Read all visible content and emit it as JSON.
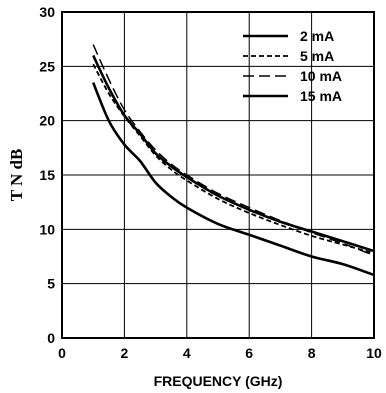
{
  "chart_data": {
    "type": "line",
    "xlabel": "FREQUENCY (GHz)",
    "ylabel": "T N dB",
    "xlim": [
      0,
      10
    ],
    "ylim": [
      0,
      30
    ],
    "xticks": [
      0,
      2,
      4,
      6,
      8,
      10
    ],
    "yticks": [
      0,
      5,
      10,
      15,
      20,
      25,
      30
    ],
    "grid": true,
    "legend_position": "top-right",
    "series": [
      {
        "name": "2 mA",
        "style": "solid",
        "x": [
          1,
          1.5,
          2,
          2.5,
          3,
          3.5,
          4,
          5,
          6,
          7,
          8,
          9,
          10
        ],
        "y": [
          26.0,
          23.0,
          20.5,
          18.8,
          17.0,
          15.8,
          14.8,
          13.1,
          11.8,
          10.7,
          9.8,
          8.9,
          8.0
        ]
      },
      {
        "name": "5 mA",
        "style": "dashed",
        "x": [
          1,
          1.5,
          2,
          2.5,
          3,
          3.5,
          4,
          5,
          6,
          7,
          8,
          9,
          10
        ],
        "y": [
          25.2,
          22.5,
          20.4,
          18.6,
          16.8,
          15.5,
          14.5,
          12.8,
          11.5,
          10.4,
          9.4,
          8.6,
          7.8
        ]
      },
      {
        "name": "10 mA",
        "style": "longdash",
        "x": [
          1,
          1.5,
          2,
          2.5,
          3,
          3.5,
          4,
          5,
          6,
          7,
          8,
          9,
          10
        ],
        "y": [
          27.0,
          23.8,
          21.0,
          19.0,
          17.3,
          16.0,
          15.0,
          13.3,
          12.0,
          10.8,
          9.7,
          8.7,
          7.6
        ]
      },
      {
        "name": "15 mA",
        "style": "solid",
        "x": [
          1,
          1.5,
          2,
          2.5,
          3,
          3.5,
          4,
          5,
          6,
          7,
          8,
          9,
          10
        ],
        "y": [
          23.5,
          20.0,
          17.8,
          16.3,
          14.3,
          13.0,
          12.0,
          10.5,
          9.5,
          8.5,
          7.5,
          6.8,
          5.8
        ]
      }
    ]
  }
}
